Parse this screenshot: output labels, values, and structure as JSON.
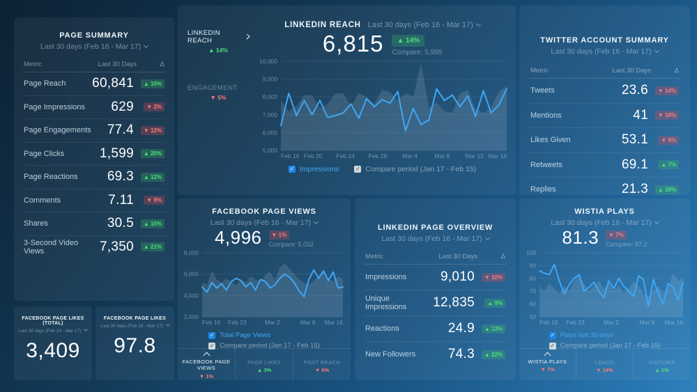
{
  "colors": {
    "line_blue": "#3fa7f5",
    "compare_fill": "rgba(190,214,232,0.16)",
    "green": "#4fe07a",
    "red": "#ff7b7b",
    "grid": "rgba(255,255,255,0.08)",
    "axis_text": "rgba(190,215,233,0.5)"
  },
  "page_summary": {
    "title": "PAGE SUMMARY",
    "subtitle": "Last 30 days (Feb 16 - Mar 17)",
    "columns": [
      "Metric",
      "Last 30 Days",
      "Δ"
    ],
    "rows": [
      {
        "metric": "Page Reach",
        "value": "60,841",
        "delta": "10%",
        "dir": "up"
      },
      {
        "metric": "Page Impressions",
        "value": "629",
        "delta": "2%",
        "dir": "down"
      },
      {
        "metric": "Page Engagements",
        "value": "77.4",
        "delta": "12%",
        "dir": "down"
      },
      {
        "metric": "Page Clicks",
        "value": "1,599",
        "delta": "20%",
        "dir": "up"
      },
      {
        "metric": "Page Reactions",
        "value": "69.3",
        "delta": "12%",
        "dir": "up"
      },
      {
        "metric": "Comments",
        "value": "7.11",
        "delta": "9%",
        "dir": "down"
      },
      {
        "metric": "Shares",
        "value": "30.5",
        "delta": "10%",
        "dir": "up"
      },
      {
        "metric": "3-Second Video Views",
        "value": "7,350",
        "delta": "21%",
        "dir": "up"
      }
    ]
  },
  "fb_likes_total": {
    "title": "FACEBOOK PAGE LIKES (TOTAL)",
    "subtitle": "Last 30 days (Feb 16 - Mar 17)",
    "value": "3,409"
  },
  "fb_likes": {
    "title": "FACEBOOK PAGE LIKES",
    "subtitle": "Last 30 days (Feb 16 - Mar 17)",
    "value": "97.8"
  },
  "linkedin_reach": {
    "rail": [
      {
        "label": "LINKEDIN REACH",
        "delta": "14%",
        "dir": "up",
        "active": true
      },
      {
        "label": "ENGAGEMENT",
        "delta": "5%",
        "dir": "down",
        "active": false
      }
    ],
    "title": "LINKEDIN REACH",
    "subtitle": "Last 30 days (Feb 16 - Mar 17)",
    "value": "6,815",
    "delta": "14%",
    "dir": "up",
    "compare": "Compare: 5,995",
    "legend": [
      {
        "label": "Impressions",
        "style": "blue"
      },
      {
        "label": "Compare period (Jan 17 - Feb 15)",
        "style": "gray"
      }
    ]
  },
  "fb_views": {
    "title": "FACEBOOK PAGE VIEWS",
    "subtitle": "Last 30 days (Feb 16 - Mar 17)",
    "value": "4,996",
    "delta": "1%",
    "dir": "down",
    "compare": "Compare: 5,032",
    "legend": [
      {
        "label": "Total Page Views",
        "style": "blue"
      },
      {
        "label": "Compare period (Jan 17 - Feb 15)",
        "style": "gray"
      }
    ],
    "tabs": [
      {
        "label": "FACEBOOK PAGE VIEWS",
        "delta": "1%",
        "dir": "down",
        "active": true
      },
      {
        "label": "PAGE LIKES",
        "delta": "3%",
        "dir": "up",
        "active": false
      },
      {
        "label": "POST REACH",
        "delta": "6%",
        "dir": "down",
        "active": false
      }
    ]
  },
  "linkedin_overview": {
    "title": "LINKEDIN PAGE OVERVIEW",
    "subtitle": "Last 30 days (Feb 16 - Mar 17)",
    "columns": [
      "Metric",
      "Last 30 Days",
      "Δ"
    ],
    "rows": [
      {
        "metric": "Impressions",
        "value": "9,010",
        "delta": "10%",
        "dir": "down"
      },
      {
        "metric": "Unique Impressions",
        "value": "12,835",
        "delta": "9%",
        "dir": "up"
      },
      {
        "metric": "Reactions",
        "value": "24.9",
        "delta": "13%",
        "dir": "up"
      },
      {
        "metric": "New Followers",
        "value": "74.3",
        "delta": "22%",
        "dir": "up"
      }
    ]
  },
  "twitter": {
    "title": "TWITTER ACCOUNT SUMMARY",
    "subtitle": "Last 30 days (Feb 16 - Mar 17)",
    "columns": [
      "Metric",
      "Last 30 Days",
      "Δ"
    ],
    "rows": [
      {
        "metric": "Tweets",
        "value": "23.6",
        "delta": "14%",
        "dir": "down"
      },
      {
        "metric": "Mentions",
        "value": "41",
        "delta": "18%",
        "dir": "down"
      },
      {
        "metric": "Likes Given",
        "value": "53.1",
        "delta": "9%",
        "dir": "down"
      },
      {
        "metric": "Retweets",
        "value": "69.1",
        "delta": "7%",
        "dir": "up"
      },
      {
        "metric": "Replies",
        "value": "21.3",
        "delta": "19%",
        "dir": "up"
      }
    ]
  },
  "wistia": {
    "title": "WISTIA PLAYS",
    "subtitle": "Last 30 days (Feb 16 - Mar 17)",
    "value": "81.3",
    "delta": "7%",
    "dir": "down",
    "compare": "Compare: 87.2",
    "legend": [
      {
        "label": "Plays last 30 days",
        "style": "blue"
      },
      {
        "label": "Compare period (Jan 17 - Feb 15)",
        "style": "gray"
      }
    ],
    "tabs": [
      {
        "label": "WISTIA PLAYS",
        "delta": "7%",
        "dir": "down",
        "active": true
      },
      {
        "label": "LOADS",
        "delta": "14%",
        "dir": "down",
        "active": false
      },
      {
        "label": "VISITORS",
        "delta": "1%",
        "dir": "up",
        "active": false
      }
    ]
  },
  "chart_data": [
    {
      "id": "linkedin_reach",
      "type": "line",
      "title": "LINKEDIN REACH",
      "ylim": [
        5000,
        10000
      ],
      "yticks": [
        10000,
        9000,
        8000,
        7000,
        6000,
        5000
      ],
      "ytick_labels": [
        "10,000",
        "9,000",
        "8,000",
        "7,000",
        "6,000",
        "5,000"
      ],
      "x_tick_labels": [
        "Feb 16",
        "Feb 20",
        "Feb 24",
        "Feb 28",
        "Mar 4",
        "Mar 8",
        "Mar 12",
        "Mar 16"
      ],
      "series": [
        {
          "name": "Compare period (Jan 17 - Feb 15)",
          "render": "area",
          "values": [
            7800,
            7200,
            7500,
            8100,
            8100,
            7400,
            7600,
            8200,
            8200,
            7500,
            8200,
            8000,
            7600,
            8400,
            8300,
            7800,
            8200,
            8000,
            9900,
            7400,
            7700,
            7200,
            7100,
            8200,
            8400,
            7300,
            7100,
            7400,
            8300,
            8600
          ]
        },
        {
          "name": "Impressions",
          "render": "line",
          "values": [
            6400,
            8200,
            6950,
            7800,
            7000,
            7800,
            6850,
            6950,
            7100,
            7600,
            6800,
            7900,
            7450,
            7850,
            7650,
            8300,
            6100,
            7350,
            6450,
            6700,
            8450,
            7800,
            8100,
            7450,
            8050,
            6900,
            8350,
            7100,
            7550,
            8450
          ]
        }
      ]
    },
    {
      "id": "fb_views",
      "type": "line",
      "title": "FACEBOOK PAGE VIEWS",
      "ylim": [
        2000,
        8000
      ],
      "yticks": [
        8000,
        6000,
        4000,
        2000
      ],
      "ytick_labels": [
        "8,000",
        "6,000",
        "4,000",
        "2,000"
      ],
      "x_tick_labels": [
        "Feb 16",
        "Feb 23",
        "Mar 2",
        "Mar 9",
        "Mar 16"
      ],
      "series": [
        {
          "name": "Compare period (Jan 17 - Feb 15)",
          "render": "area",
          "values": [
            5200,
            5000,
            6300,
            5500,
            5200,
            5600,
            5300,
            5000,
            5500,
            5200,
            5800,
            5500,
            5300,
            5900,
            6200,
            5500,
            6600,
            7000,
            6500,
            6000,
            5500,
            5200,
            5000,
            5400,
            5800,
            6400,
            5600,
            5300,
            5800,
            5500
          ]
        },
        {
          "name": "Total Page Views",
          "render": "line",
          "values": [
            4800,
            4300,
            5200,
            4700,
            5100,
            4500,
            5300,
            5600,
            5400,
            4800,
            5200,
            4500,
            5500,
            5300,
            4700,
            5000,
            5600,
            6000,
            5700,
            5200,
            4400,
            3900,
            5500,
            6400,
            5600,
            6300,
            5400,
            6200,
            4700,
            4800
          ]
        }
      ]
    },
    {
      "id": "wistia_plays",
      "type": "line",
      "title": "WISTIA PLAYS",
      "ylim": [
        50,
        100
      ],
      "yticks": [
        100,
        90,
        80,
        70,
        60,
        50
      ],
      "ytick_labels": [
        "100",
        "90",
        "80",
        "70",
        "60",
        "50"
      ],
      "x_tick_labels": [
        "Feb 16",
        "Feb 23",
        "Mar 2",
        "Mar 9",
        "Mar 16"
      ],
      "series": [
        {
          "name": "Compare period (Jan 17 - Feb 15)",
          "render": "area",
          "values": [
            74,
            70,
            76,
            72,
            68,
            74,
            70,
            78,
            82,
            76,
            70,
            74,
            78,
            72,
            76,
            70,
            74,
            68,
            72,
            78,
            74,
            68,
            66,
            70,
            74,
            68,
            72,
            84,
            78,
            80
          ]
        },
        {
          "name": "Plays last 30 days",
          "render": "line",
          "values": [
            86,
            84,
            83,
            91,
            78,
            68,
            75,
            80,
            83,
            70,
            73,
            77,
            70,
            65,
            78,
            72,
            80,
            74,
            70,
            66,
            82,
            79,
            58,
            79,
            68,
            60,
            76,
            73,
            63,
            77
          ]
        }
      ]
    }
  ]
}
